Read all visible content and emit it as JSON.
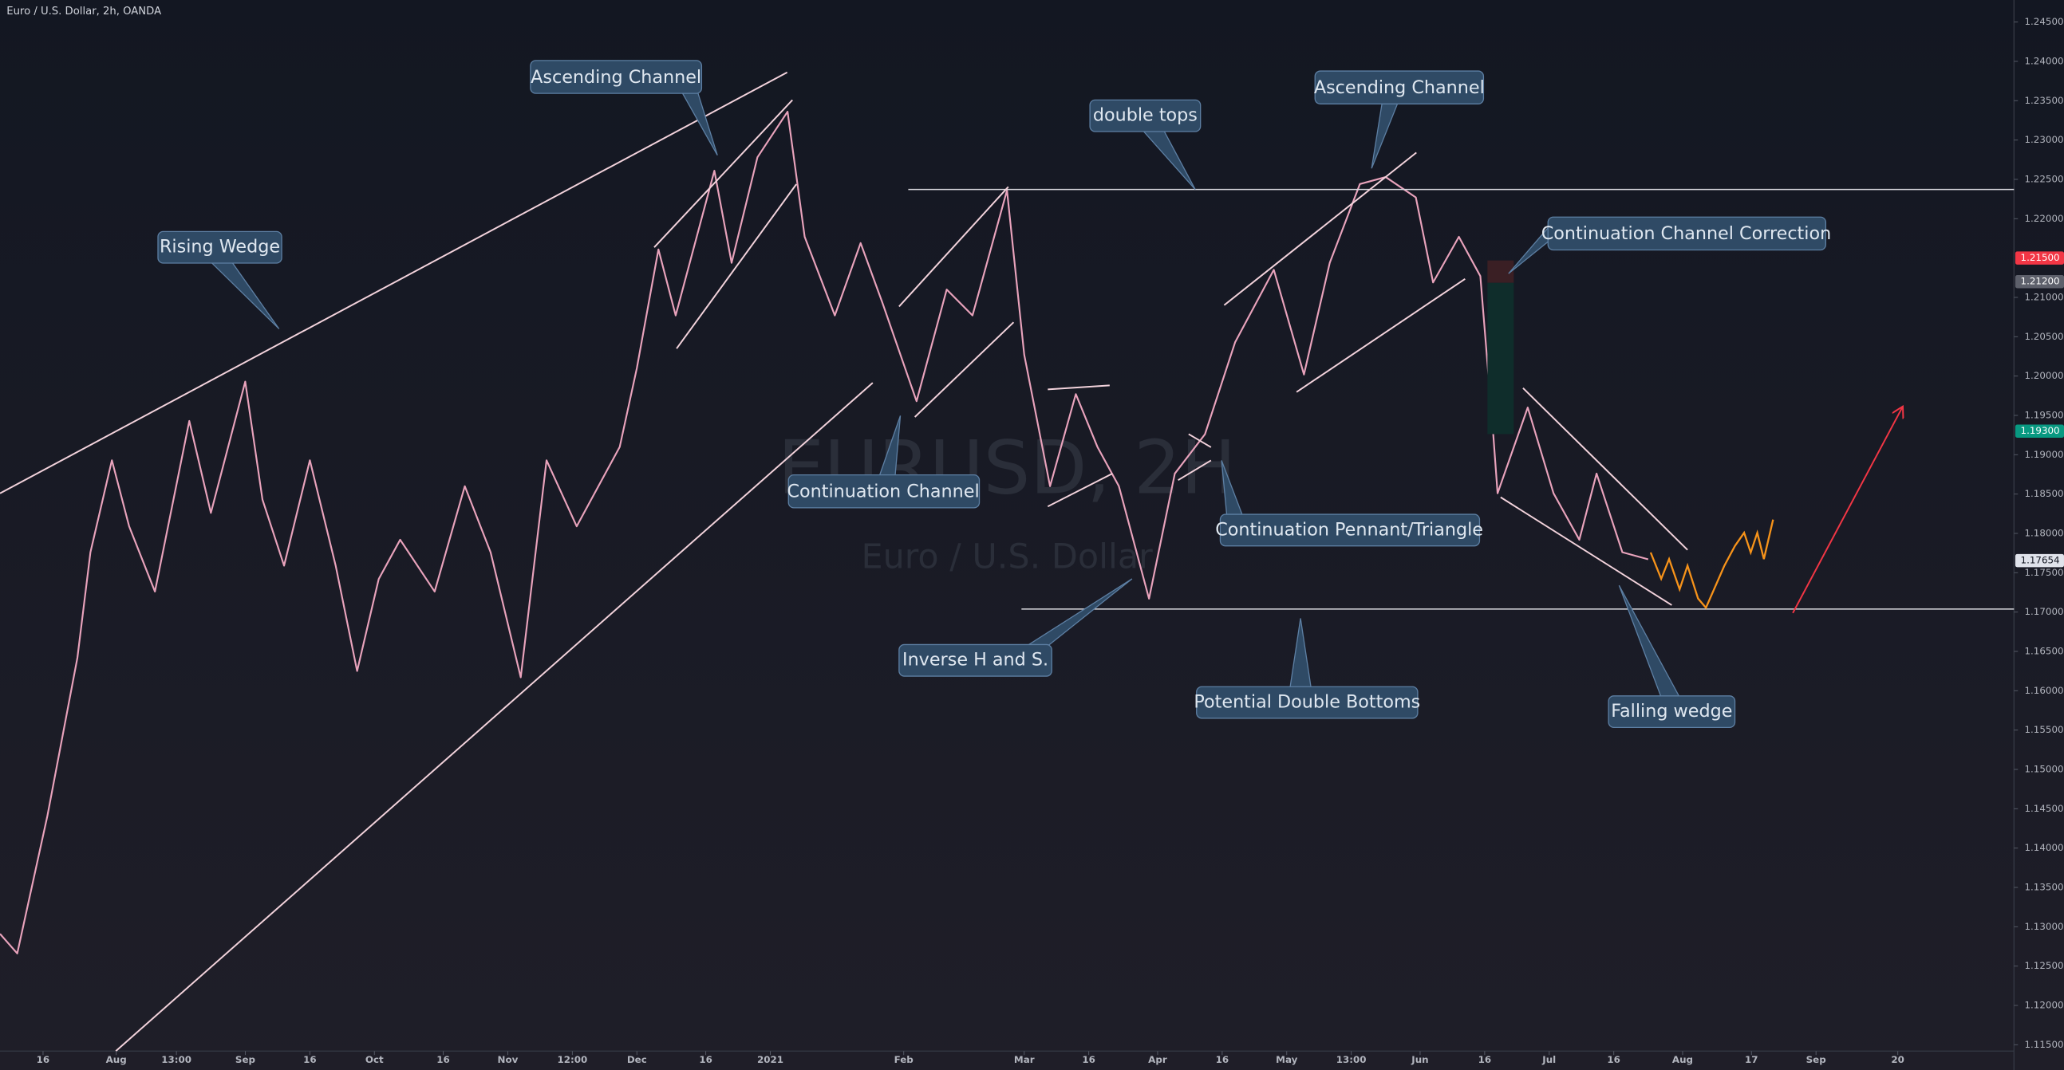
{
  "chart_data": {
    "type": "line",
    "title": "Euro / U.S. Dollar, 2h, OANDA",
    "watermark": "EURUSD, 2H",
    "watermark_subtitle": "Euro / U.S. Dollar",
    "color": "#e9a3bc",
    "x": [
      -179,
      -175,
      -168,
      -161,
      -158,
      -153,
      -149,
      -143,
      -135,
      -130,
      -122,
      -118,
      -113,
      -107,
      -101,
      -96,
      -91,
      -86,
      -78,
      -71,
      -65,
      -58,
      -52,
      -45,
      -35,
      -31,
      -26,
      -22,
      -13,
      -9,
      -3,
      4,
      8,
      15,
      21,
      26,
      34,
      41,
      47,
      55,
      59,
      65,
      71,
      76,
      81,
      88,
      94,
      101,
      108,
      117,
      124,
      130,
      137,
      143,
      150,
      154,
      160,
      165,
      168,
      169,
      176,
      182,
      188,
      192,
      198,
      204
    ],
    "values": [
      1.1291,
      1.1266,
      1.1441,
      1.1642,
      1.1776,
      1.1893,
      1.1809,
      1.1726,
      1.1943,
      1.1826,
      1.1993,
      1.1843,
      1.1759,
      1.1893,
      1.1759,
      1.1625,
      1.1742,
      1.1792,
      1.1726,
      1.186,
      1.1776,
      1.1617,
      1.1893,
      1.1809,
      1.191,
      1.201,
      1.2161,
      1.2077,
      1.2261,
      1.2144,
      1.2278,
      1.2336,
      1.2177,
      1.2077,
      1.2169,
      1.2094,
      1.1968,
      1.211,
      1.2077,
      1.2236,
      1.2027,
      1.186,
      1.1977,
      1.191,
      1.186,
      1.1717,
      1.1876,
      1.1926,
      1.2043,
      1.2135,
      1.2002,
      1.2144,
      1.2244,
      1.2253,
      1.2227,
      1.2119,
      1.2177,
      1.2127,
      1.1926,
      1.1851,
      1.196,
      1.1851,
      1.1792,
      1.1876,
      1.1776,
      1.1767
    ],
    "xlim": [
      -179,
      289
    ],
    "ylim": [
      1.1142,
      1.2478
    ],
    "xticks": [
      {
        "value": -169,
        "label": "16"
      },
      {
        "value": -152,
        "label": "Aug"
      },
      {
        "value": -138,
        "label": "13:00"
      },
      {
        "value": -122,
        "label": "Sep"
      },
      {
        "value": -107,
        "label": "16"
      },
      {
        "value": -92,
        "label": "Oct"
      },
      {
        "value": -76,
        "label": "16"
      },
      {
        "value": -61,
        "label": "Nov"
      },
      {
        "value": -46,
        "label": "12:00"
      },
      {
        "value": -31,
        "label": "Dec"
      },
      {
        "value": -15,
        "label": "16"
      },
      {
        "value": 0,
        "label": "2021"
      },
      {
        "value": 31,
        "label": "Feb"
      },
      {
        "value": 59,
        "label": "Mar"
      },
      {
        "value": 74,
        "label": "16"
      },
      {
        "value": 90,
        "label": "Apr"
      },
      {
        "value": 105,
        "label": "16"
      },
      {
        "value": 120,
        "label": "May"
      },
      {
        "value": 135,
        "label": "13:00"
      },
      {
        "value": 151,
        "label": "Jun"
      },
      {
        "value": 166,
        "label": "16"
      },
      {
        "value": 181,
        "label": "Jul"
      },
      {
        "value": 196,
        "label": "16"
      },
      {
        "value": 212,
        "label": "Aug"
      },
      {
        "value": 228,
        "label": "17"
      },
      {
        "value": 243,
        "label": "Sep"
      },
      {
        "value": 262,
        "label": "20"
      }
    ],
    "yticks": [
      {
        "value": 1.245,
        "label": "1.24500"
      },
      {
        "value": 1.24,
        "label": "1.24000"
      },
      {
        "value": 1.235,
        "label": "1.23500"
      },
      {
        "value": 1.23,
        "label": "1.23000"
      },
      {
        "value": 1.225,
        "label": "1.22500"
      },
      {
        "value": 1.22,
        "label": "1.22000"
      },
      {
        "value": 1.21,
        "label": "1.21000"
      },
      {
        "value": 1.205,
        "label": "1.20500"
      },
      {
        "value": 1.2,
        "label": "1.20000"
      },
      {
        "value": 1.195,
        "label": "1.19500"
      },
      {
        "value": 1.19,
        "label": "1.19000"
      },
      {
        "value": 1.185,
        "label": "1.18500"
      },
      {
        "value": 1.18,
        "label": "1.18000"
      },
      {
        "value": 1.175,
        "label": "1.17500"
      },
      {
        "value": 1.17,
        "label": "1.17000"
      },
      {
        "value": 1.165,
        "label": "1.16500"
      },
      {
        "value": 1.16,
        "label": "1.16000"
      },
      {
        "value": 1.155,
        "label": "1.15500"
      },
      {
        "value": 1.15,
        "label": "1.15000"
      },
      {
        "value": 1.145,
        "label": "1.14500"
      },
      {
        "value": 1.14,
        "label": "1.14000"
      },
      {
        "value": 1.135,
        "label": "1.13500"
      },
      {
        "value": 1.13,
        "label": "1.13000"
      },
      {
        "value": 1.125,
        "label": "1.12500"
      },
      {
        "value": 1.12,
        "label": "1.12000"
      },
      {
        "value": 1.115,
        "label": "1.11500"
      }
    ],
    "price_tags": [
      {
        "value": 1.215,
        "label": "1.21500",
        "color": "#f23645"
      },
      {
        "value": 1.212,
        "label": "1.21200",
        "color": "#5d606b"
      },
      {
        "value": 1.193,
        "label": "1.19300",
        "color": "#089981"
      },
      {
        "value": 1.17654,
        "label": "1.17654",
        "color": "#e0e3eb"
      }
    ],
    "annotations": [
      "Ascending Channel",
      "Rising Wedge",
      "double tops",
      "Ascending Channel",
      "Continuation Channel Correction",
      "Continuation Channel",
      "Continuation Pennant/Triangle",
      "Inverse H and S.",
      "Potential Double Bottoms",
      "Falling wedge"
    ]
  }
}
